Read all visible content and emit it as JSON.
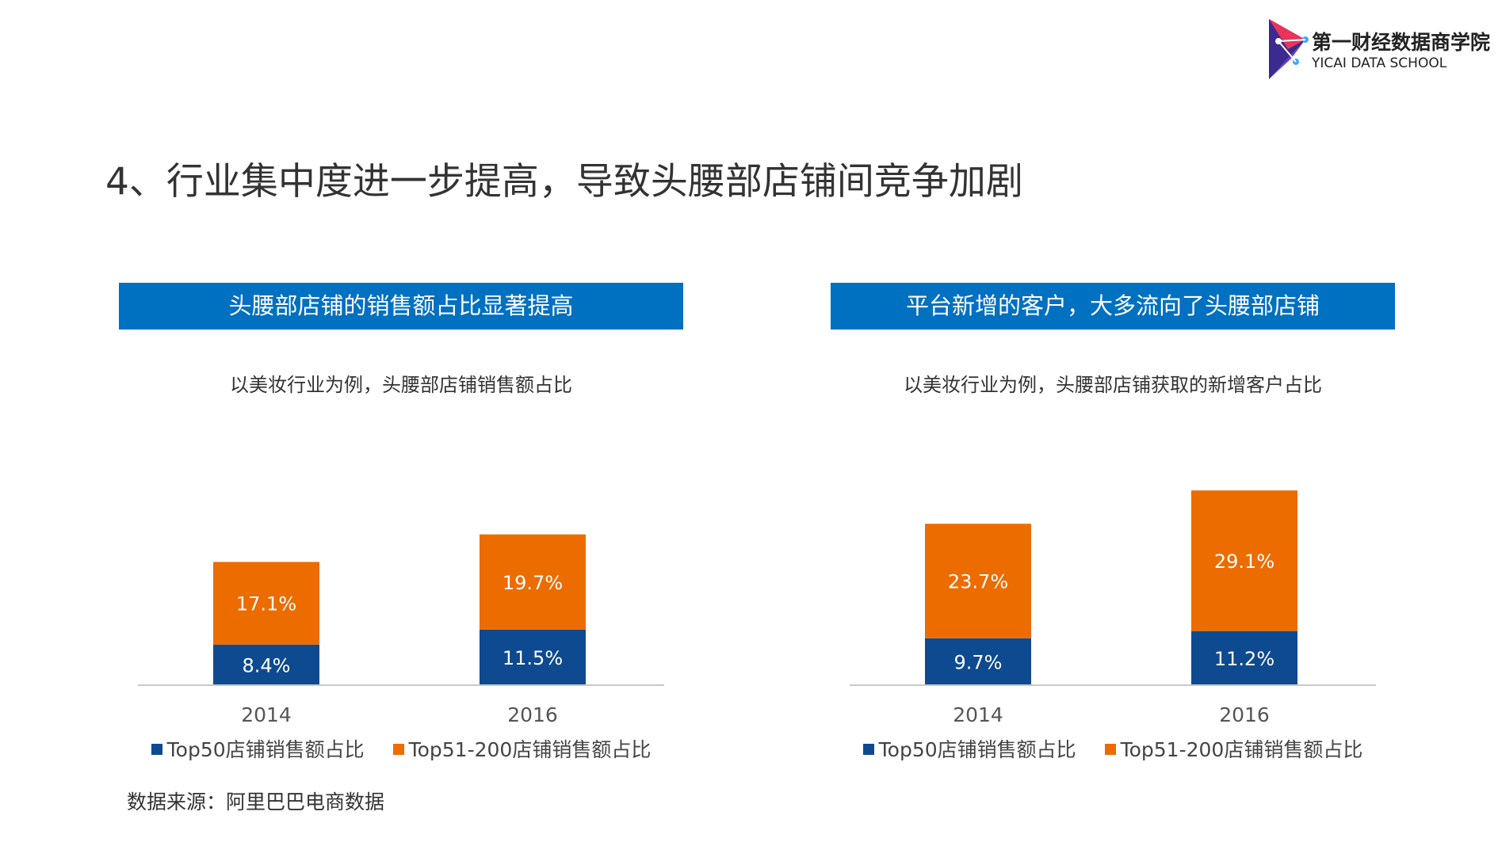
{
  "logo": {
    "cn": "第一财经数据商学院",
    "en": "YICAI DATA SCHOOL"
  },
  "title": "4、行业集中度进一步提高，导致头腰部店铺间竞争加剧",
  "colors": {
    "header_bg": "#0070c0",
    "top50": "#0e4a8f",
    "top51_200": "#ec6c00",
    "axis": "#c8c8c8"
  },
  "panels": [
    {
      "header": "头腰部店铺的销售额占比显著提高",
      "subtitle": "以美妆行业为例，头腰部店铺销售额占比",
      "legend": [
        "Top50店铺销售额占比",
        "Top51-200店铺销售额占比"
      ]
    },
    {
      "header": "平台新增的客户，大多流向了头腰部店铺",
      "subtitle": "以美妆行业为例，头腰部店铺获取的新增客户占比",
      "legend": [
        "Top50店铺销售额占比",
        "Top51-200店铺销售额占比"
      ]
    }
  ],
  "chart_data": [
    {
      "type": "bar",
      "stacked": true,
      "categories": [
        "2014",
        "2016"
      ],
      "series": [
        {
          "name": "Top50店铺销售额占比",
          "values": [
            8.4,
            11.5
          ],
          "labels": [
            "8.4%",
            "11.5%"
          ]
        },
        {
          "name": "Top51-200店铺销售额占比",
          "values": [
            17.1,
            19.7
          ],
          "labels": [
            "17.1%",
            "19.7%"
          ]
        }
      ],
      "legend_position": "bottom"
    },
    {
      "type": "bar",
      "stacked": true,
      "categories": [
        "2014",
        "2016"
      ],
      "series": [
        {
          "name": "Top50店铺销售额占比",
          "values": [
            9.7,
            11.2
          ],
          "labels": [
            "9.7%",
            "11.2%"
          ]
        },
        {
          "name": "Top51-200店铺销售额占比",
          "values": [
            23.7,
            29.1
          ],
          "labels": [
            "23.7%",
            "29.1%"
          ]
        }
      ],
      "legend_position": "bottom"
    }
  ],
  "source": "数据来源：阿里巴巴电商数据"
}
